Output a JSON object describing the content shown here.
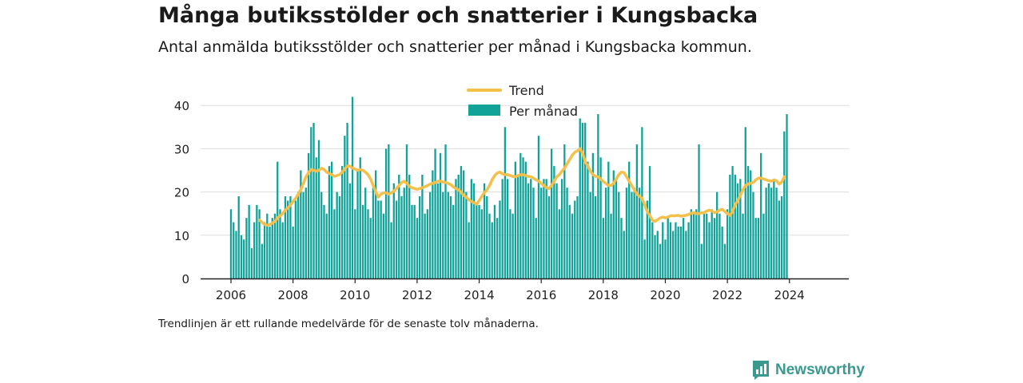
{
  "header": {
    "title": "Många butiksstölder och snatterier i Kungsbacka",
    "subtitle": "Antal anmälda butiksstölder och snatterier per månad i Kungsbacka kommun."
  },
  "footer": {
    "note": "Trendlinjen är ett rullande medelvärde för de senaste tolv månaderna.",
    "brand": "Newsworthy",
    "brand_icon": "bar-chart-logo-icon"
  },
  "colors": {
    "bar": "#11a39a",
    "trend": "#f5c04a",
    "axis": "#222222",
    "grid": "#dddddd",
    "brand": "#3a9a8f"
  },
  "chart_data": {
    "type": "bar",
    "title": "Många butiksstölder och snatterier i Kungsbacka",
    "subtitle": "Antal anmälda butiksstölder och snatterier per månad i Kungsbacka kommun.",
    "start": "2006-01",
    "x_ticks": [
      "2006",
      "2008",
      "2010",
      "2012",
      "2014",
      "2016",
      "2018",
      "2020",
      "2022",
      "2024"
    ],
    "y_ticks": [
      0,
      10,
      20,
      30,
      40
    ],
    "ylim": [
      0,
      42
    ],
    "grid": true,
    "legend_position": "top-center",
    "series": [
      {
        "name": "Per månad",
        "type": "bar",
        "values": [
          16,
          13,
          11,
          19,
          10,
          9,
          14,
          17,
          7,
          13,
          17,
          16,
          8,
          13,
          15,
          12,
          14,
          15,
          27,
          16,
          13,
          19,
          18,
          19,
          12,
          18,
          20,
          25,
          20,
          21,
          29,
          35,
          36,
          28,
          32,
          20,
          17,
          15,
          26,
          27,
          16,
          20,
          19,
          26,
          33,
          36,
          22,
          42,
          16,
          25,
          28,
          17,
          21,
          16,
          14,
          21,
          25,
          18,
          18,
          15,
          30,
          31,
          13,
          22,
          18,
          24,
          19,
          21,
          31,
          24,
          17,
          17,
          14,
          19,
          24,
          15,
          16,
          20,
          25,
          30,
          22,
          29,
          20,
          31,
          20,
          19,
          17,
          23,
          24,
          26,
          25,
          20,
          13,
          23,
          22,
          17,
          17,
          16,
          22,
          19,
          15,
          13,
          17,
          14,
          18,
          23,
          35,
          23,
          16,
          15,
          27,
          24,
          29,
          28,
          27,
          22,
          23,
          21,
          14,
          33,
          21,
          23,
          23,
          19,
          30,
          26,
          22,
          16,
          23,
          31,
          21,
          17,
          15,
          18,
          19,
          37,
          36,
          36,
          27,
          20,
          29,
          19,
          38,
          28,
          14,
          21,
          27,
          15,
          25,
          23,
          20,
          14,
          11,
          21,
          27,
          20,
          21,
          31,
          21,
          35,
          9,
          18,
          26,
          13,
          10,
          11,
          8,
          13,
          9,
          14,
          13,
          11,
          13,
          12,
          12,
          14,
          11,
          13,
          16,
          15,
          16,
          31,
          8,
          15,
          15,
          13,
          16,
          14,
          20,
          15,
          12,
          8,
          16,
          24,
          26,
          24,
          22,
          23,
          15,
          35,
          26,
          25,
          20,
          14,
          14,
          29,
          15,
          21,
          22,
          21,
          23,
          21,
          18,
          19,
          34,
          38
        ]
      },
      {
        "name": "Trend",
        "type": "line",
        "start_index": 11,
        "values": [
          13.5,
          13,
          12.5,
          12.3,
          12.5,
          12.8,
          13.2,
          14,
          14.5,
          15,
          15.8,
          16.3,
          17,
          17.8,
          18.5,
          19.5,
          20.5,
          22,
          23.5,
          24.5,
          25.2,
          25,
          24.8,
          25,
          25.5,
          25.2,
          24.6,
          24.3,
          24,
          23.6,
          23.8,
          24,
          24.6,
          25.3,
          26,
          26,
          25.5,
          25.3,
          25,
          25.2,
          25,
          24.6,
          24,
          23,
          21.5,
          20,
          18.8,
          19.5,
          19.8,
          19.8,
          19.5,
          19.8,
          20.2,
          20.8,
          21.5,
          22.2,
          22.5,
          22,
          21.3,
          21,
          20.8,
          20.6,
          20.8,
          21,
          21.2,
          21.5,
          21.8,
          22,
          22.2,
          22.5,
          22.5,
          22.3,
          22.2,
          22,
          21.7,
          21.2,
          20.8,
          20.5,
          20,
          19.2,
          18.8,
          18.2,
          17.8,
          17.5,
          17.2,
          18,
          19,
          19.8,
          20.5,
          21.5,
          22.8,
          23.8,
          24.4,
          24.6,
          24.2,
          24,
          24,
          23.8,
          23.6,
          23.5,
          23.8,
          24,
          24,
          23.8,
          23.6,
          23.5,
          23.2,
          22.8,
          22.5,
          22,
          21.5,
          21,
          20.8,
          21.5,
          22.5,
          23.5,
          24,
          24.8,
          25.5,
          26.5,
          27.5,
          28.5,
          29.2,
          29.5,
          30,
          29,
          27,
          26,
          24.8,
          24,
          23.6,
          23.5,
          23,
          22.4,
          22,
          21.5,
          21.5,
          22,
          23,
          24,
          24.6,
          24.5,
          23.5,
          22.5,
          21.5,
          20.5,
          19.5,
          19,
          18.5,
          17,
          15.5,
          14.5,
          13.5,
          13.2,
          13.6,
          14,
          14.2,
          14,
          14.2,
          14.5,
          14.5,
          14.5,
          14.6,
          14.4,
          14.5,
          14.6,
          14.8,
          15.1,
          15.2,
          15,
          15,
          15.2,
          15.2,
          15.6,
          15.8,
          15.6,
          15.2,
          15.4,
          15.8,
          16,
          15.5,
          15,
          14.6,
          15.5,
          17,
          18,
          19.2,
          20.5,
          21.5,
          21.8,
          22,
          22.2,
          22.8,
          23.2,
          23.2,
          23,
          22.8,
          22.6,
          22.5,
          22.8,
          22.6,
          21.8,
          22.3,
          23.5
        ]
      }
    ]
  }
}
